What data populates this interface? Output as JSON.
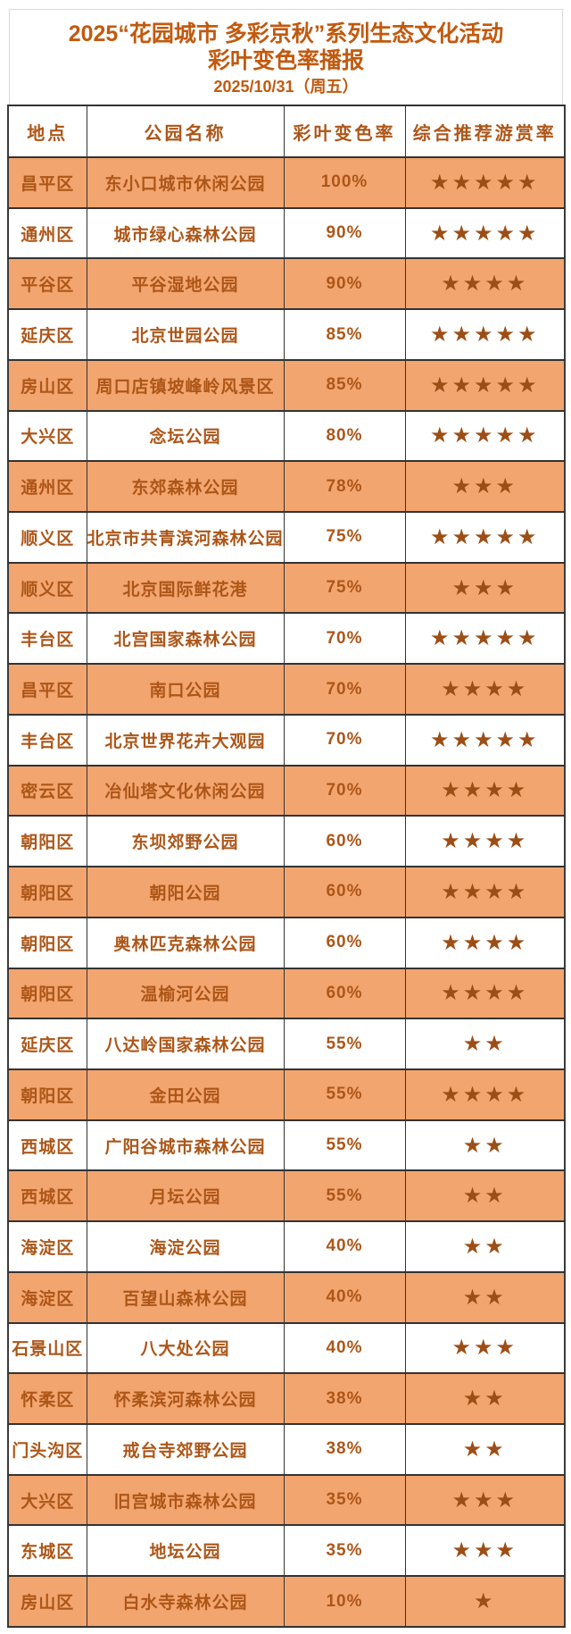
{
  "header": {
    "title_line1": "2025“花园城市 多彩京秋”系列生态文化活动",
    "title_line2": "彩叶变色率播报",
    "date": "2025/10/31（周五）"
  },
  "chart_data": {
    "type": "table",
    "title": "2025“花园城市 多彩京秋”系列生态文化活动 彩叶变色率播报",
    "date": "2025/10/31（周五）",
    "columns": [
      "地点",
      "公园名称",
      "彩叶变色率",
      "综合推荐游赏率"
    ],
    "star_glyph": "★",
    "rows": [
      {
        "district": "昌平区",
        "park": "东小口城市休闲公园",
        "rate": "100%",
        "stars": 5
      },
      {
        "district": "通州区",
        "park": "城市绿心森林公园",
        "rate": "90%",
        "stars": 5
      },
      {
        "district": "平谷区",
        "park": "平谷湿地公园",
        "rate": "90%",
        "stars": 4
      },
      {
        "district": "延庆区",
        "park": "北京世园公园",
        "rate": "85%",
        "stars": 5
      },
      {
        "district": "房山区",
        "park": "周口店镇坡峰岭风景区",
        "rate": "85%",
        "stars": 5
      },
      {
        "district": "大兴区",
        "park": "念坛公园",
        "rate": "80%",
        "stars": 5
      },
      {
        "district": "通州区",
        "park": "东郊森林公园",
        "rate": "78%",
        "stars": 3
      },
      {
        "district": "顺义区",
        "park": "北京市共青滨河森林公园",
        "rate": "75%",
        "stars": 5
      },
      {
        "district": "顺义区",
        "park": "北京国际鲜花港",
        "rate": "75%",
        "stars": 3
      },
      {
        "district": "丰台区",
        "park": "北宫国家森林公园",
        "rate": "70%",
        "stars": 5
      },
      {
        "district": "昌平区",
        "park": "南口公园",
        "rate": "70%",
        "stars": 4
      },
      {
        "district": "丰台区",
        "park": "北京世界花卉大观园",
        "rate": "70%",
        "stars": 5
      },
      {
        "district": "密云区",
        "park": "冶仙塔文化休闲公园",
        "rate": "70%",
        "stars": 4
      },
      {
        "district": "朝阳区",
        "park": "东坝郊野公园",
        "rate": "60%",
        "stars": 4
      },
      {
        "district": "朝阳区",
        "park": "朝阳公园",
        "rate": "60%",
        "stars": 4
      },
      {
        "district": "朝阳区",
        "park": "奥林匹克森林公园",
        "rate": "60%",
        "stars": 4
      },
      {
        "district": "朝阳区",
        "park": "温榆河公园",
        "rate": "60%",
        "stars": 4
      },
      {
        "district": "延庆区",
        "park": "八达岭国家森林公园",
        "rate": "55%",
        "stars": 2
      },
      {
        "district": "朝阳区",
        "park": "金田公园",
        "rate": "55%",
        "stars": 4
      },
      {
        "district": "西城区",
        "park": "广阳谷城市森林公园",
        "rate": "55%",
        "stars": 2
      },
      {
        "district": "西城区",
        "park": "月坛公园",
        "rate": "55%",
        "stars": 2
      },
      {
        "district": "海淀区",
        "park": "海淀公园",
        "rate": "40%",
        "stars": 2
      },
      {
        "district": "海淀区",
        "park": "百望山森林公园",
        "rate": "40%",
        "stars": 2
      },
      {
        "district": "石景山区",
        "park": "八大处公园",
        "rate": "40%",
        "stars": 3
      },
      {
        "district": "怀柔区",
        "park": "怀柔滨河森林公园",
        "rate": "38%",
        "stars": 2
      },
      {
        "district": "门头沟区",
        "park": "戒台寺郊野公园",
        "rate": "38%",
        "stars": 2
      },
      {
        "district": "大兴区",
        "park": "旧宫城市森林公园",
        "rate": "35%",
        "stars": 3
      },
      {
        "district": "东城区",
        "park": "地坛公园",
        "rate": "35%",
        "stars": 3
      },
      {
        "district": "房山区",
        "park": "白水寺森林公园",
        "rate": "10%",
        "stars": 1
      }
    ]
  },
  "colors": {
    "title_text": "#c2590e",
    "cell_text": "#ad5618",
    "star": "#9d4e16",
    "row_orange": "#f2a56f",
    "grid_border": "#333333",
    "outer_border": "#3b3b3b",
    "title_box_border": "#d9d9d9"
  }
}
